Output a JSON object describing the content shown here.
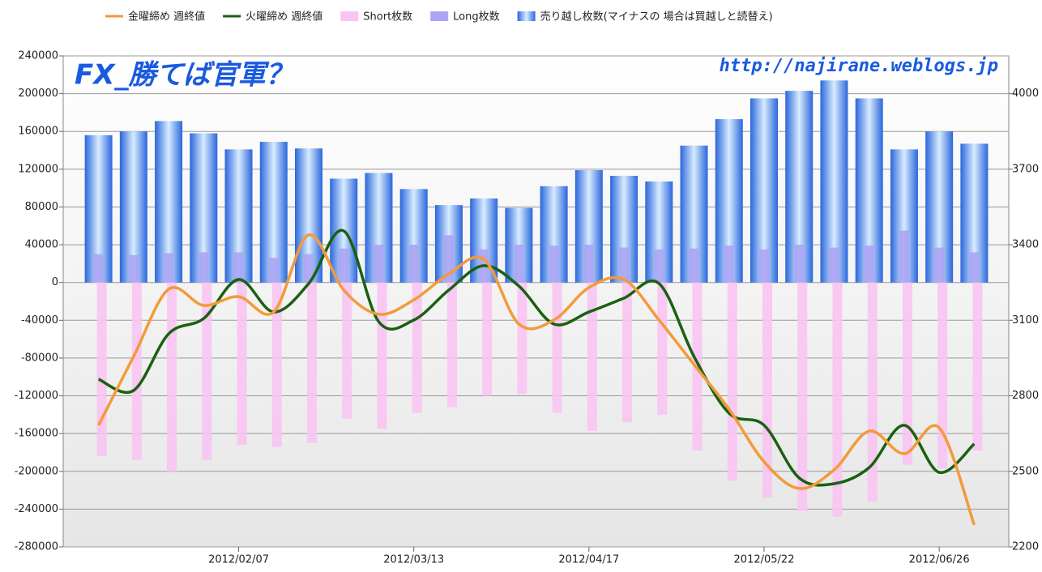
{
  "chart_data": {
    "type": "bar",
    "annotations": [
      "FX_勝てば官軍？",
      "http://najirane.weblogs.jp"
    ],
    "categories": [
      null,
      null,
      null,
      null,
      "2012/02/07",
      null,
      null,
      null,
      null,
      "2012/03/13",
      null,
      null,
      null,
      null,
      "2012/04/17",
      null,
      null,
      null,
      null,
      "2012/05/22",
      null,
      null,
      null,
      null,
      "2012/06/26",
      null
    ],
    "series": [
      {
        "name": "金曜締め 週終値",
        "type": "line",
        "axis": "y2",
        "color": "#f39a3a",
        "values": [
          2683,
          2956,
          3223,
          3159,
          3194,
          3133,
          3439,
          3220,
          3124,
          3181,
          3284,
          3342,
          3085,
          3101,
          3230,
          3262,
          3101,
          2924,
          2747,
          2538,
          2432,
          2506,
          2660,
          2570,
          2673,
          2287
        ]
      },
      {
        "name": "火曜締め 週終値",
        "type": "line",
        "axis": "y2",
        "color": "#1a6010",
        "values": [
          2866,
          2821,
          3046,
          3107,
          3262,
          3133,
          3246,
          3455,
          3094,
          3101,
          3220,
          3317,
          3236,
          3085,
          3133,
          3188,
          3246,
          2956,
          2731,
          2683,
          2474,
          2451,
          2515,
          2683,
          2496,
          2609
        ]
      },
      {
        "name": "Short枚数",
        "type": "bar",
        "color": "#f8c4f2",
        "values": [
          -184000,
          -188000,
          -200000,
          -188000,
          -172000,
          -174000,
          -170000,
          -144000,
          -155000,
          -138000,
          -132000,
          -120000,
          -118000,
          -138000,
          -157000,
          -148000,
          -140000,
          -178000,
          -210000,
          -228000,
          -242000,
          -248000,
          -232000,
          -193000,
          -197000,
          -178000
        ]
      },
      {
        "name": "Long枚数",
        "type": "bar",
        "color": "#aca4f4",
        "values": [
          30000,
          29000,
          31000,
          32000,
          32000,
          26000,
          30000,
          36000,
          40000,
          40000,
          50000,
          35000,
          40000,
          39000,
          40000,
          37000,
          35000,
          36000,
          39000,
          35000,
          40000,
          37000,
          39000,
          55000,
          37000,
          32000
        ]
      },
      {
        "name": "売り越し枚数(マイナスの 場合は買越しと読替え)",
        "type": "bar",
        "color": "#3a7ae8",
        "values": [
          156000,
          160000,
          171000,
          158000,
          141000,
          149000,
          142000,
          110000,
          116000,
          99000,
          82000,
          89000,
          79000,
          102000,
          119000,
          113000,
          107000,
          145000,
          173000,
          195000,
          203000,
          214000,
          195000,
          141000,
          160000,
          147000
        ]
      }
    ],
    "ylim": [
      -280000,
      240000
    ],
    "yticks": [
      -280000,
      -240000,
      -200000,
      -160000,
      -120000,
      -80000,
      -40000,
      0,
      40000,
      80000,
      120000,
      160000,
      200000,
      240000
    ],
    "y2lim": [
      2200,
      4150
    ],
    "y2ticks": [
      2200,
      2500,
      2800,
      3100,
      3400,
      3700,
      4000
    ],
    "grid": true
  }
}
